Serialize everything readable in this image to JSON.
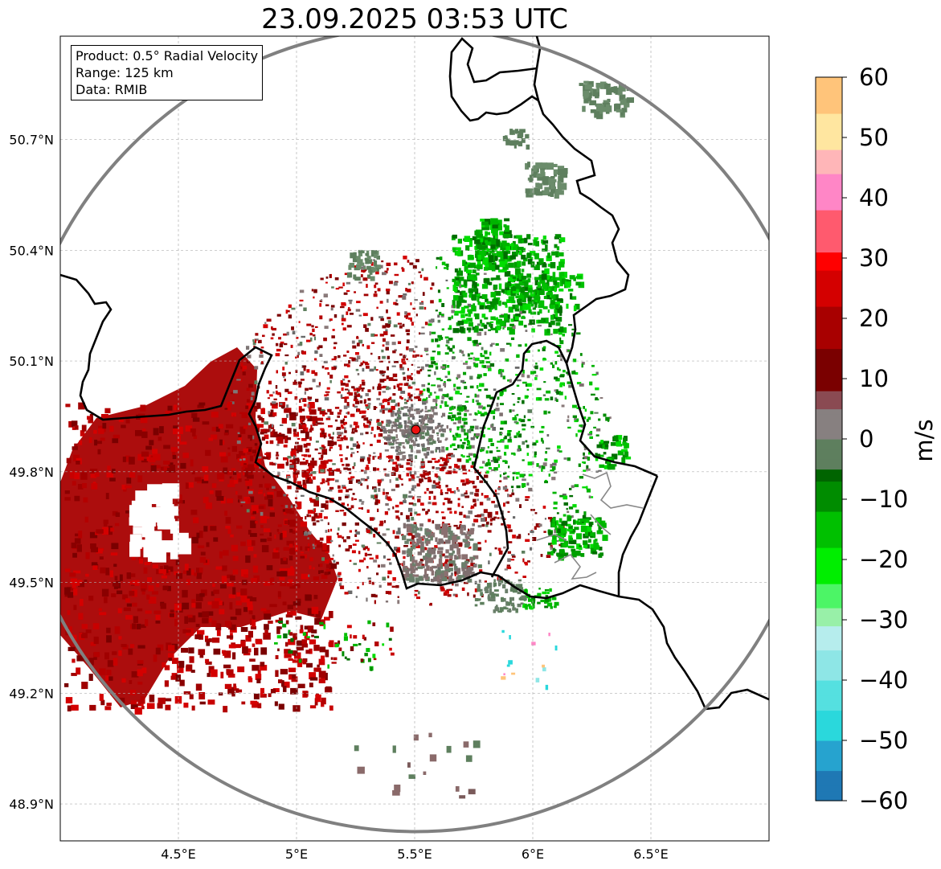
{
  "title": "23.09.2025 03:53 UTC",
  "info": {
    "product": "Product: 0.5° Radial Velocity",
    "range": "Range: 125 km",
    "source": "Data: RMIB"
  },
  "map": {
    "lon_range": [
      4.0,
      7.0
    ],
    "lat_range": [
      48.8,
      50.98
    ],
    "lon_ticks": [
      "4.5°E",
      "5°E",
      "5.5°E",
      "6°E",
      "6.5°E"
    ],
    "lon_tick_values": [
      4.5,
      5.0,
      5.5,
      6.0,
      6.5
    ],
    "lat_ticks": [
      "50.7°N",
      "50.4°N",
      "50.1°N",
      "49.8°N",
      "49.5°N",
      "49.2°N",
      "48.9°N"
    ],
    "lat_tick_values": [
      50.7,
      50.4,
      50.1,
      49.8,
      49.5,
      49.2,
      48.9
    ],
    "radar_site": {
      "lon": 5.505,
      "lat": 49.914
    },
    "range_ring_km": 125,
    "grid": true
  },
  "colorbar": {
    "unit": "m/s",
    "min": -60,
    "max": 60,
    "ticks": [
      "60",
      "50",
      "40",
      "30",
      "20",
      "10",
      "0",
      "−10",
      "−20",
      "−30",
      "−40",
      "−50",
      "−60"
    ],
    "tick_values": [
      60,
      50,
      40,
      30,
      20,
      10,
      0,
      -10,
      -20,
      -30,
      -40,
      -50,
      -60
    ],
    "stops": [
      {
        "v": -60,
        "c": "#1f78b4"
      },
      {
        "v": -55,
        "c": "#26a3cf"
      },
      {
        "v": -50,
        "c": "#2ad8dc"
      },
      {
        "v": -45,
        "c": "#55e0e0"
      },
      {
        "v": -40,
        "c": "#8ee6e6"
      },
      {
        "v": -35,
        "c": "#b6eded"
      },
      {
        "v": -31,
        "c": "#98f0a8"
      },
      {
        "v": -28,
        "c": "#4cf566"
      },
      {
        "v": -24,
        "c": "#00ee00"
      },
      {
        "v": -18,
        "c": "#00c000"
      },
      {
        "v": -12,
        "c": "#008c00"
      },
      {
        "v": -7,
        "c": "#006400"
      },
      {
        "v": -5,
        "c": "#5e7f5e"
      },
      {
        "v": 0,
        "c": "#878080"
      },
      {
        "v": 5,
        "c": "#8a4a52"
      },
      {
        "v": 8,
        "c": "#7a0000"
      },
      {
        "v": 15,
        "c": "#a80000"
      },
      {
        "v": 22,
        "c": "#d40000"
      },
      {
        "v": 28,
        "c": "#ff0000"
      },
      {
        "v": 31,
        "c": "#ff5a6e"
      },
      {
        "v": 38,
        "c": "#ff86c6"
      },
      {
        "v": 44,
        "c": "#ffb6b8"
      },
      {
        "v": 48,
        "c": "#ffe6a0"
      },
      {
        "v": 54,
        "c": "#ffc47a"
      },
      {
        "v": 60,
        "c": "#ff9e55"
      }
    ]
  },
  "colors": {
    "outbound_red": "#a80000",
    "inbound_green": "#00a000",
    "near_zero_gray": "#7f7777",
    "border": "#000000",
    "range_ring": "#808080",
    "radar_marker": "#ee1111"
  }
}
